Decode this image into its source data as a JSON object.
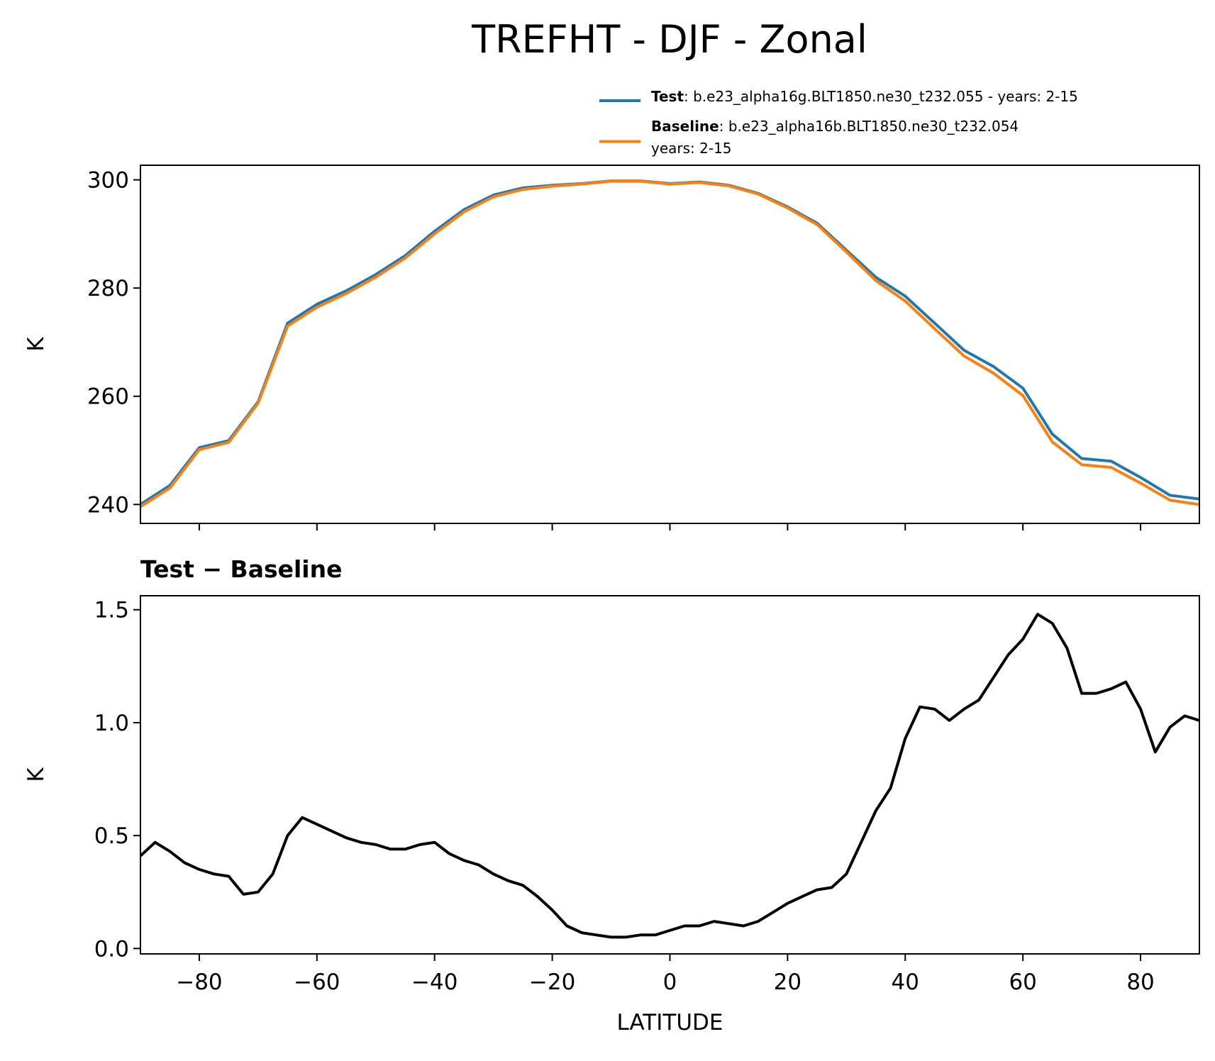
{
  "title": "TREFHT - DJF - Zonal",
  "chart_data": [
    {
      "type": "line",
      "ylabel": "K",
      "xlim": [
        -90,
        90
      ],
      "ylim": [
        236.5,
        302.7
      ],
      "xticks": [
        -80,
        -60,
        -40,
        -20,
        0,
        20,
        40,
        60,
        80
      ],
      "yticks": [
        240,
        260,
        280,
        300
      ],
      "legend": "upper right",
      "x": [
        -90,
        -85,
        -80,
        -75,
        -70,
        -65,
        -60,
        -55,
        -50,
        -45,
        -40,
        -35,
        -30,
        -25,
        -20,
        -15,
        -10,
        -5,
        0,
        5,
        10,
        15,
        20,
        25,
        30,
        35,
        40,
        45,
        50,
        55,
        60,
        65,
        70,
        75,
        80,
        85,
        90
      ],
      "series": [
        {
          "name": "Test",
          "detail": [
            ": b.e23_alpha16g.BLT1850.ne30_t232.055 - years: 2-15"
          ],
          "color": "#1f77b4",
          "values": [
            240.0,
            243.5,
            250.5,
            251.8,
            259,
            273.5,
            277,
            279.5,
            282.5,
            286,
            290.5,
            294.5,
            297.2,
            298.5,
            299,
            299.3,
            299.8,
            299.8,
            299.3,
            299.6,
            299,
            297.5,
            295,
            292,
            287,
            282,
            278.5,
            273.5,
            268.5,
            265.5,
            261.5,
            253,
            248.5,
            248,
            245,
            241.7,
            241.0
          ]
        },
        {
          "name": "Baseline",
          "detail": [
            ": b.e23_alpha16b.BLT1850.ne30_t232.054",
            "years: 2-15"
          ],
          "color": "#ff7f0e",
          "values": [
            239.59,
            243.04,
            250.14,
            251.47,
            258.75,
            272.98,
            276.45,
            279.01,
            282.03,
            285.56,
            290.03,
            294.1,
            296.87,
            298.23,
            298.83,
            299.23,
            299.75,
            299.74,
            299.22,
            299.5,
            298.89,
            297.38,
            294.81,
            291.74,
            286.67,
            281.38,
            277.6,
            272.47,
            267.44,
            264.28,
            260.12,
            251.56,
            247.35,
            246.85,
            243.94,
            240.8,
            239.99
          ]
        }
      ]
    },
    {
      "type": "line",
      "title": "Test − Baseline",
      "xlabel": "LATITUDE",
      "ylabel": "K",
      "xlim": [
        -90,
        90
      ],
      "ylim": [
        -0.024,
        1.562
      ],
      "xticks": [
        {
          "value": -80,
          "label": "−80"
        },
        {
          "value": -60,
          "label": "−60"
        },
        {
          "value": -40,
          "label": "−40"
        },
        {
          "value": -20,
          "label": "−20"
        },
        0,
        20,
        40,
        60,
        80
      ],
      "yticks": [
        {
          "value": 0,
          "label": "0.0"
        },
        0.5,
        {
          "value": 1,
          "label": "1.0"
        },
        1.5
      ],
      "x": [
        -90,
        -87.5,
        -85,
        -82.5,
        -80,
        -77.5,
        -75,
        -72.5,
        -70,
        -67.5,
        -65,
        -62.5,
        -60,
        -57.5,
        -55,
        -52.5,
        -50,
        -47.5,
        -45,
        -42.5,
        -40,
        -37.5,
        -35,
        -32.5,
        -30,
        -27.5,
        -25,
        -22.5,
        -20,
        -17.5,
        -15,
        -12.5,
        -10,
        -7.5,
        -5,
        -2.5,
        0,
        2.5,
        5,
        7.5,
        10,
        12.5,
        15,
        17.5,
        20,
        22.5,
        25,
        27.5,
        30,
        32.5,
        35,
        37.5,
        40,
        42.5,
        45,
        47.5,
        50,
        52.5,
        55,
        57.5,
        60,
        62.5,
        65,
        67.5,
        70,
        72.5,
        75,
        77.5,
        80,
        82.5,
        85,
        87.5,
        90
      ],
      "series": [
        {
          "color": "#000000",
          "values": [
            0.41,
            0.47,
            0.43,
            0.38,
            0.35,
            0.33,
            0.32,
            0.24,
            0.25,
            0.33,
            0.5,
            0.58,
            0.55,
            0.52,
            0.49,
            0.47,
            0.46,
            0.44,
            0.44,
            0.46,
            0.47,
            0.42,
            0.39,
            0.37,
            0.33,
            0.3,
            0.28,
            0.23,
            0.17,
            0.1,
            0.07,
            0.06,
            0.05,
            0.05,
            0.06,
            0.06,
            0.08,
            0.1,
            0.1,
            0.12,
            0.11,
            0.1,
            0.12,
            0.16,
            0.2,
            0.23,
            0.26,
            0.27,
            0.33,
            0.47,
            0.61,
            0.71,
            0.93,
            1.07,
            1.06,
            1.01,
            1.06,
            1.1,
            1.2,
            1.3,
            1.37,
            1.48,
            1.44,
            1.33,
            1.13,
            1.13,
            1.15,
            1.18,
            1.06,
            0.87,
            0.98,
            1.03,
            1.01
          ]
        }
      ]
    }
  ]
}
